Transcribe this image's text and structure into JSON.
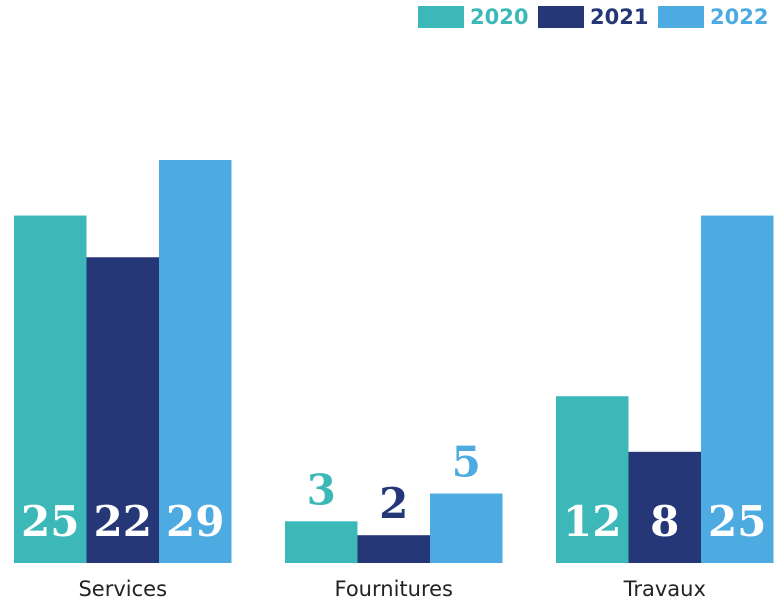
{
  "chart_data": {
    "type": "bar",
    "categories": [
      "Services",
      "Fournitures",
      "Travaux"
    ],
    "series": [
      {
        "name": "2020",
        "color": "#3cb8b8",
        "values": [
          25,
          3,
          12
        ]
      },
      {
        "name": "2021",
        "color": "#263778",
        "values": [
          22,
          2,
          8
        ]
      },
      {
        "name": "2022",
        "color": "#4eabe1",
        "values": [
          29,
          5,
          25
        ]
      }
    ],
    "ylim": [
      0,
      39
    ],
    "legend": "top-right"
  }
}
